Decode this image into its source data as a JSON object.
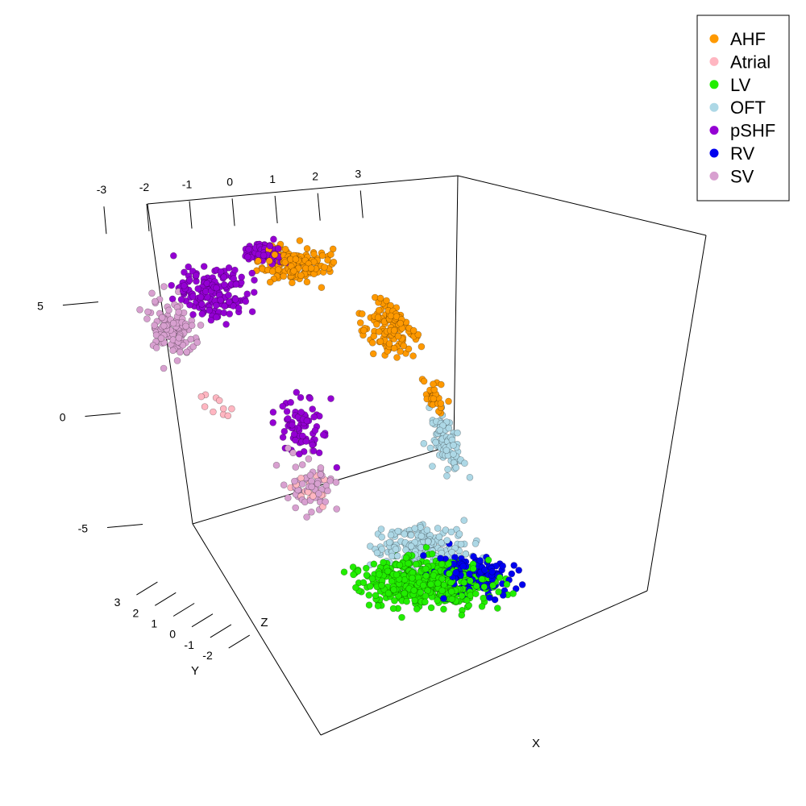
{
  "chart_data": {
    "type": "scatter",
    "projection": "3d",
    "title": "",
    "axes": {
      "x": {
        "label": "X",
        "ticks": [
          "-3",
          "-2",
          "-1",
          "0",
          "1",
          "2",
          "3"
        ],
        "range": [
          -3.5,
          3.3
        ]
      },
      "y": {
        "label": "Y",
        "ticks": [
          "3",
          "2",
          "1",
          "0",
          "-1",
          "-2"
        ],
        "range": [
          -2.8,
          3.2
        ]
      },
      "z": {
        "label": "Z",
        "ticks": [
          "5",
          "0",
          "-5"
        ],
        "range": [
          -7.5,
          8
        ]
      }
    },
    "grid": false,
    "legend": {
      "position": "top-right"
    },
    "series": [
      {
        "name": "AHF",
        "color": "#ff9900",
        "clusters": [
          {
            "x": [
              -0.3,
              1.8
            ],
            "y": [
              0.8,
              2.8
            ],
            "z": [
              5.8,
              7.9
            ],
            "count": 150
          },
          {
            "x": [
              1.5,
              3.0
            ],
            "y": [
              -0.5,
              1.8
            ],
            "z": [
              2.5,
              6.0
            ],
            "count": 130
          },
          {
            "x": [
              2.3,
              2.9
            ],
            "y": [
              -0.5,
              0.5
            ],
            "z": [
              0.3,
              2.5
            ],
            "count": 30
          }
        ]
      },
      {
        "name": "Atrial",
        "color": "#ffb6c1",
        "clusters": [
          {
            "x": [
              -1.2,
              0.2
            ],
            "y": [
              -0.5,
              1.2
            ],
            "z": [
              -3.6,
              -1.2
            ],
            "count": 20
          },
          {
            "x": [
              -3.0,
              -1.8
            ],
            "y": [
              -0.5,
              1.0
            ],
            "z": [
              0.5,
              2.5
            ],
            "count": 10
          }
        ]
      },
      {
        "name": "LV",
        "color": "#22ee00",
        "clusters": [
          {
            "x": [
              -1.0,
              3.2
            ],
            "y": [
              -2.5,
              0.0
            ],
            "z": [
              -7.5,
              -4.5
            ],
            "count": 480
          }
        ]
      },
      {
        "name": "OFT",
        "color": "#add8e6",
        "clusters": [
          {
            "x": [
              2.2,
              3.1
            ],
            "y": [
              -0.8,
              0.6
            ],
            "z": [
              -2.5,
              1.5
            ],
            "count": 80
          },
          {
            "x": [
              0.0,
              3.2
            ],
            "y": [
              -1.0,
              0.5
            ],
            "z": [
              -6.5,
              -3.5
            ],
            "count": 180
          }
        ]
      },
      {
        "name": "pSHF",
        "color": "#9400d3",
        "clusters": [
          {
            "x": [
              -2.5,
              0.0
            ],
            "y": [
              1.0,
              3.0
            ],
            "z": [
              4.0,
              7.5
            ],
            "count": 150
          },
          {
            "x": [
              -0.5,
              0.8
            ],
            "y": [
              1.5,
              3.0
            ],
            "z": [
              6.5,
              8.0
            ],
            "count": 60
          },
          {
            "x": [
              -1.2,
              0.4
            ],
            "y": [
              -0.5,
              1.5
            ],
            "z": [
              -2.0,
              2.5
            ],
            "count": 70
          }
        ]
      },
      {
        "name": "RV",
        "color": "#0000ee",
        "clusters": [
          {
            "x": [
              1.0,
              3.3
            ],
            "y": [
              -2.5,
              -0.2
            ],
            "z": [
              -7.0,
              -4.5
            ],
            "count": 150
          }
        ]
      },
      {
        "name": "SV",
        "color": "#d8a0d0",
        "clusters": [
          {
            "x": [
              -3.3,
              -1.8
            ],
            "y": [
              0.5,
              2.5
            ],
            "z": [
              2.5,
              6.5
            ],
            "count": 120
          },
          {
            "x": [
              -1.5,
              0.3
            ],
            "y": [
              -0.5,
              1.0
            ],
            "z": [
              -4.0,
              0.0
            ],
            "count": 60
          }
        ]
      }
    ]
  }
}
